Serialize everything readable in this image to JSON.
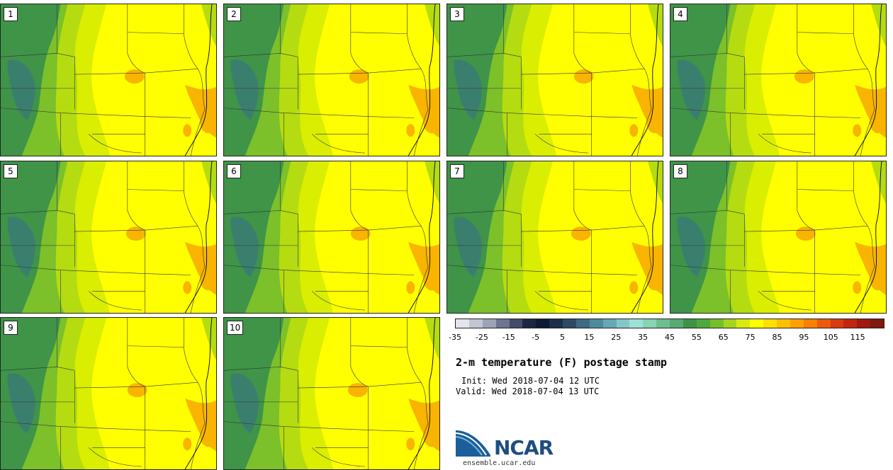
{
  "panels": [
    {
      "label": "1"
    },
    {
      "label": "2"
    },
    {
      "label": "3"
    },
    {
      "label": "4"
    },
    {
      "label": "5"
    },
    {
      "label": "6"
    },
    {
      "label": "7"
    },
    {
      "label": "8"
    },
    {
      "label": "9"
    },
    {
      "label": "10"
    }
  ],
  "colorbar": {
    "colors": [
      "#e3e5ec",
      "#c2c6d3",
      "#9ea3b6",
      "#6e7590",
      "#454c6a",
      "#1b2740",
      "#0c1a33",
      "#1c2e48",
      "#2d4a62",
      "#3d6a80",
      "#4f8a9c",
      "#66a8b4",
      "#85c6c8",
      "#9fe0d6",
      "#88d3b0",
      "#6cbf8e",
      "#58aa72",
      "#3e9246",
      "#4ea83c",
      "#74be2a",
      "#a6d41c",
      "#d8ea0e",
      "#ffff00",
      "#ffe000",
      "#ffc000",
      "#ffa000",
      "#f98000",
      "#ee5a0c",
      "#d93a0e",
      "#c2260e",
      "#a1180e",
      "#7e1a0e"
    ],
    "ticks": [
      "-35",
      "-25",
      "-15",
      "-5",
      "5",
      "15",
      "25",
      "35",
      "45",
      "55",
      "65",
      "75",
      "85",
      "95",
      "105",
      "115"
    ]
  },
  "info": {
    "title": "2-m temperature (F) postage stamp",
    "init": "Init: Wed 2018-07-04 12 UTC",
    "valid": "Valid: Wed 2018-07-04 13 UTC"
  },
  "logo": {
    "name": "NCAR",
    "url": "ensemble.ucar.edu"
  },
  "map_colors": {
    "hot": "#ffff00",
    "warm": "#d9ee00",
    "mild": "#b5dc10",
    "cool": "#7cc02a",
    "mountain": "#3f9448",
    "high_mountain": "#3a7f6e",
    "very_hot": "#f8b400",
    "lines": "#333333"
  }
}
